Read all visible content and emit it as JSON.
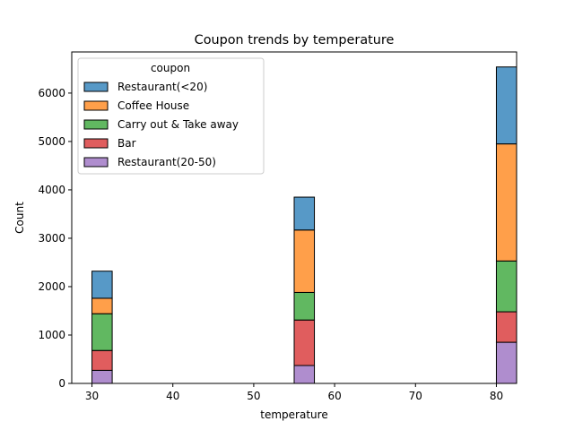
{
  "chart_data": {
    "type": "bar",
    "stacked": true,
    "title": "Coupon trends by temperature",
    "xlabel": "temperature",
    "ylabel": "Count",
    "xlim": [
      27.5,
      82.5
    ],
    "ylim": [
      0,
      6850
    ],
    "xticks": [
      30,
      40,
      50,
      60,
      70,
      80
    ],
    "yticks": [
      0,
      1000,
      2000,
      3000,
      4000,
      5000,
      6000
    ],
    "bin_width": 2.5,
    "categories": [
      30,
      55,
      80
    ],
    "legend": {
      "title": "coupon",
      "position": "top-left"
    },
    "series": [
      {
        "name": "Restaurant(20-50)",
        "color": "#9467bd",
        "values": [
          270,
          370,
          850
        ]
      },
      {
        "name": "Bar",
        "color": "#d62728",
        "values": [
          410,
          940,
          630
        ]
      },
      {
        "name": "Carry out & Take away",
        "color": "#2ca02c",
        "values": [
          760,
          570,
          1050
        ]
      },
      {
        "name": "Coffee House",
        "color": "#ff7f0e",
        "values": [
          320,
          1290,
          2420
        ]
      },
      {
        "name": "Restaurant(<20)",
        "color": "#1f77b4",
        "values": [
          560,
          680,
          1590
        ]
      }
    ],
    "legend_order": [
      "Restaurant(<20)",
      "Coffee House",
      "Carry out & Take away",
      "Bar",
      "Restaurant(20-50)"
    ],
    "grid": false
  }
}
